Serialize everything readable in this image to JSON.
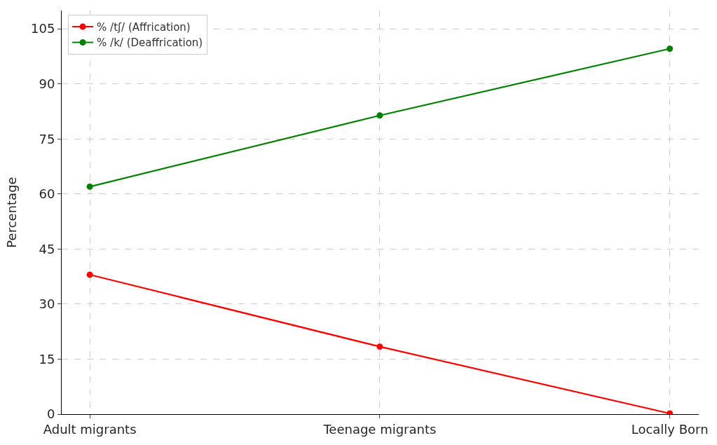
{
  "chart_data": {
    "type": "line",
    "ylabel": "Percentage",
    "categories": [
      "Adult migrants",
      "Teenage migrants",
      "Locally Born"
    ],
    "series": [
      {
        "name": "% /tʃ/ (Affrication)",
        "color": "#ff0000",
        "values": [
          38,
          18.4,
          0.2
        ]
      },
      {
        "name": "% /k/ (Deaffrication)",
        "color": "#008000",
        "values": [
          62,
          81.4,
          99.6
        ]
      }
    ],
    "ylim": [
      0,
      110
    ],
    "yticks": [
      0,
      15,
      30,
      45,
      60,
      75,
      90,
      105
    ],
    "grid": true,
    "legend": "top left",
    "marker": "circle",
    "line_style": "solid"
  }
}
